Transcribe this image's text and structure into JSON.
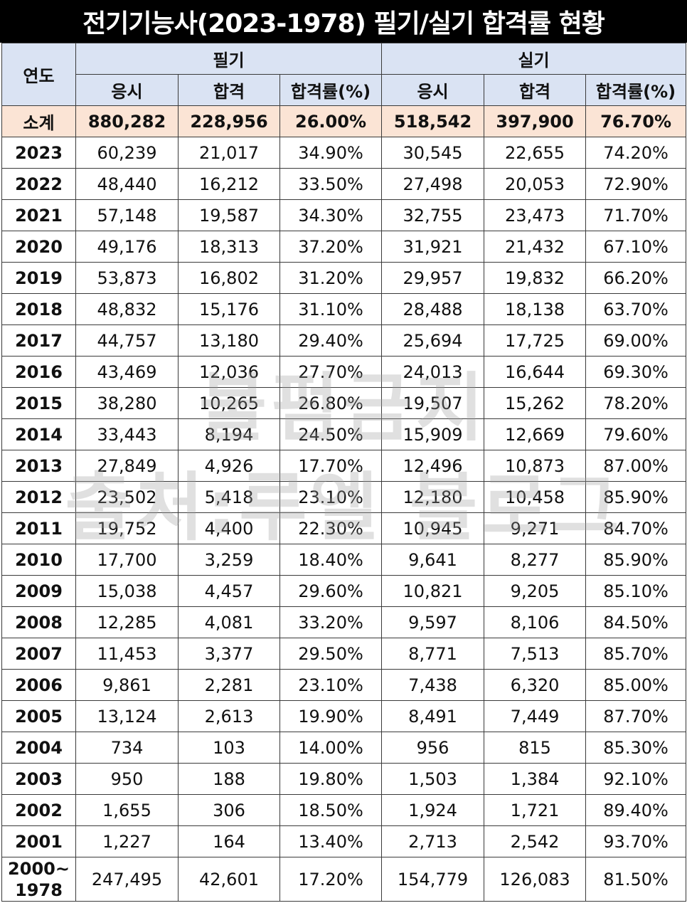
{
  "title": "전기기능사(2023-1978) 필기/실기 합격률 현황",
  "headers": {
    "year": "연도",
    "written": "필기",
    "practical": "실기",
    "applicants": "응시",
    "passed": "합격",
    "rate": "합격률(%)"
  },
  "subtotal": {
    "label": "소계",
    "w_applicants": "880,282",
    "w_passed": "228,956",
    "w_rate": "26.00%",
    "p_applicants": "518,542",
    "p_passed": "397,900",
    "p_rate": "76.70%"
  },
  "rows": [
    {
      "year": "2023",
      "w_applicants": "60,239",
      "w_passed": "21,017",
      "w_rate": "34.90%",
      "p_applicants": "30,545",
      "p_passed": "22,655",
      "p_rate": "74.20%"
    },
    {
      "year": "2022",
      "w_applicants": "48,440",
      "w_passed": "16,212",
      "w_rate": "33.50%",
      "p_applicants": "27,498",
      "p_passed": "20,053",
      "p_rate": "72.90%"
    },
    {
      "year": "2021",
      "w_applicants": "57,148",
      "w_passed": "19,587",
      "w_rate": "34.30%",
      "p_applicants": "32,755",
      "p_passed": "23,473",
      "p_rate": "71.70%"
    },
    {
      "year": "2020",
      "w_applicants": "49,176",
      "w_passed": "18,313",
      "w_rate": "37.20%",
      "p_applicants": "31,921",
      "p_passed": "21,432",
      "p_rate": "67.10%"
    },
    {
      "year": "2019",
      "w_applicants": "53,873",
      "w_passed": "16,802",
      "w_rate": "31.20%",
      "p_applicants": "29,957",
      "p_passed": "19,832",
      "p_rate": "66.20%"
    },
    {
      "year": "2018",
      "w_applicants": "48,832",
      "w_passed": "15,176",
      "w_rate": "31.10%",
      "p_applicants": "28,488",
      "p_passed": "18,138",
      "p_rate": "63.70%"
    },
    {
      "year": "2017",
      "w_applicants": "44,757",
      "w_passed": "13,180",
      "w_rate": "29.40%",
      "p_applicants": "25,694",
      "p_passed": "17,725",
      "p_rate": "69.00%"
    },
    {
      "year": "2016",
      "w_applicants": "43,469",
      "w_passed": "12,036",
      "w_rate": "27.70%",
      "p_applicants": "24,013",
      "p_passed": "16,644",
      "p_rate": "69.30%"
    },
    {
      "year": "2015",
      "w_applicants": "38,280",
      "w_passed": "10,265",
      "w_rate": "26.80%",
      "p_applicants": "19,507",
      "p_passed": "15,262",
      "p_rate": "78.20%"
    },
    {
      "year": "2014",
      "w_applicants": "33,443",
      "w_passed": "8,194",
      "w_rate": "24.50%",
      "p_applicants": "15,909",
      "p_passed": "12,669",
      "p_rate": "79.60%"
    },
    {
      "year": "2013",
      "w_applicants": "27,849",
      "w_passed": "4,926",
      "w_rate": "17.70%",
      "p_applicants": "12,496",
      "p_passed": "10,873",
      "p_rate": "87.00%"
    },
    {
      "year": "2012",
      "w_applicants": "23,502",
      "w_passed": "5,418",
      "w_rate": "23.10%",
      "p_applicants": "12,180",
      "p_passed": "10,458",
      "p_rate": "85.90%"
    },
    {
      "year": "2011",
      "w_applicants": "19,752",
      "w_passed": "4,400",
      "w_rate": "22.30%",
      "p_applicants": "10,945",
      "p_passed": "9,271",
      "p_rate": "84.70%"
    },
    {
      "year": "2010",
      "w_applicants": "17,700",
      "w_passed": "3,259",
      "w_rate": "18.40%",
      "p_applicants": "9,641",
      "p_passed": "8,277",
      "p_rate": "85.90%"
    },
    {
      "year": "2009",
      "w_applicants": "15,038",
      "w_passed": "4,457",
      "w_rate": "29.60%",
      "p_applicants": "10,821",
      "p_passed": "9,205",
      "p_rate": "85.10%"
    },
    {
      "year": "2008",
      "w_applicants": "12,285",
      "w_passed": "4,081",
      "w_rate": "33.20%",
      "p_applicants": "9,597",
      "p_passed": "8,106",
      "p_rate": "84.50%"
    },
    {
      "year": "2007",
      "w_applicants": "11,453",
      "w_passed": "3,377",
      "w_rate": "29.50%",
      "p_applicants": "8,771",
      "p_passed": "7,513",
      "p_rate": "85.70%"
    },
    {
      "year": "2006",
      "w_applicants": "9,861",
      "w_passed": "2,281",
      "w_rate": "23.10%",
      "p_applicants": "7,438",
      "p_passed": "6,320",
      "p_rate": "85.00%"
    },
    {
      "year": "2005",
      "w_applicants": "13,124",
      "w_passed": "2,613",
      "w_rate": "19.90%",
      "p_applicants": "8,491",
      "p_passed": "7,449",
      "p_rate": "87.70%"
    },
    {
      "year": "2004",
      "w_applicants": "734",
      "w_passed": "103",
      "w_rate": "14.00%",
      "p_applicants": "956",
      "p_passed": "815",
      "p_rate": "85.30%"
    },
    {
      "year": "2003",
      "w_applicants": "950",
      "w_passed": "188",
      "w_rate": "19.80%",
      "p_applicants": "1,503",
      "p_passed": "1,384",
      "p_rate": "92.10%"
    },
    {
      "year": "2002",
      "w_applicants": "1,655",
      "w_passed": "306",
      "w_rate": "18.50%",
      "p_applicants": "1,924",
      "p_passed": "1,721",
      "p_rate": "89.40%"
    },
    {
      "year": "2001",
      "w_applicants": "1,227",
      "w_passed": "164",
      "w_rate": "13.40%",
      "p_applicants": "2,713",
      "p_passed": "2,542",
      "p_rate": "93.70%"
    }
  ],
  "last_row": {
    "year_line1": "2000~",
    "year_line2": "1978",
    "w_applicants": "247,495",
    "w_passed": "42,601",
    "w_rate": "17.20%",
    "p_applicants": "154,779",
    "p_passed": "126,083",
    "p_rate": "81.50%"
  },
  "watermark": {
    "line1": "불펌금지",
    "line2": "출처:루엘 블로그"
  },
  "colors": {
    "title_bg": "#000000",
    "header_bg": "#dae3f3",
    "subtotal_bg": "#fbe4d5",
    "border": "#3a3a3a"
  }
}
